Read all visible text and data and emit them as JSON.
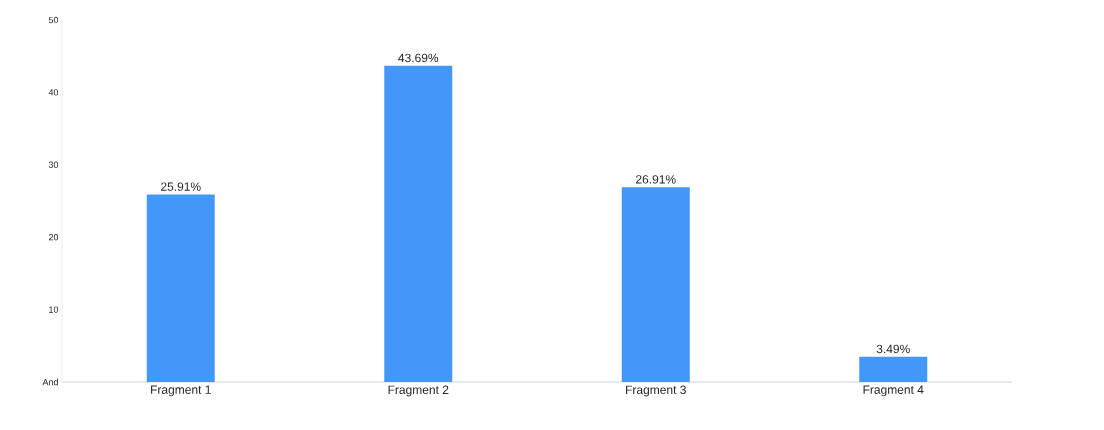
{
  "chart_data": {
    "type": "bar",
    "categories": [
      "Fragment 1",
      "Fragment 2",
      "Fragment 3",
      "Fragment 4"
    ],
    "values": [
      25.91,
      43.69,
      26.91,
      3.49
    ],
    "value_labels": [
      "25.91%",
      "43.69%",
      "26.91%",
      "3.49%"
    ],
    "color": "#4397f6",
    "ylim": [
      0,
      50
    ],
    "yticks": [
      {
        "value": 0,
        "label": "And"
      },
      10,
      20,
      30,
      40,
      50
    ]
  }
}
